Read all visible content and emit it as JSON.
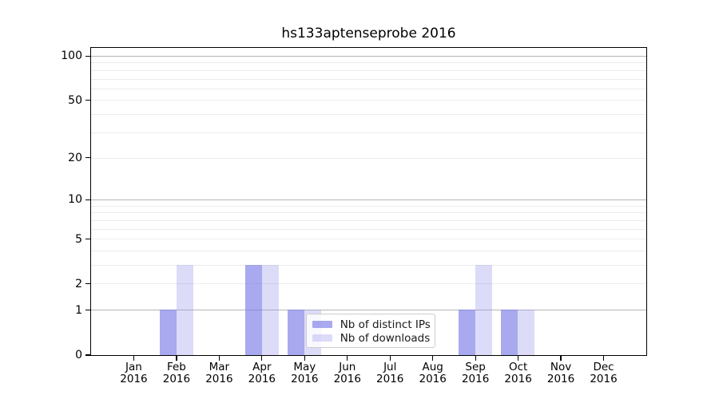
{
  "title": "hs133aptenseprobe 2016",
  "chart_data": {
    "type": "bar",
    "title": "hs133aptenseprobe 2016",
    "xlabel": "",
    "ylabel": "",
    "categories": [
      "Jan",
      "Feb",
      "Mar",
      "Apr",
      "May",
      "Jun",
      "Jul",
      "Aug",
      "Sep",
      "Oct",
      "Nov",
      "Dec"
    ],
    "xtick_year": "2016",
    "series": [
      {
        "name": "Nb of distinct IPs",
        "color": "#7878e8",
        "fill_opacity": 0.64,
        "values": [
          0,
          1,
          0,
          3,
          1,
          0,
          0,
          0,
          1,
          1,
          0,
          0
        ]
      },
      {
        "name": "Nb of downloads",
        "color": "#9696eb",
        "fill_opacity": 0.33,
        "values": [
          0,
          3,
          0,
          3,
          1,
          0,
          0,
          0,
          3,
          1,
          0,
          0
        ]
      }
    ],
    "yscale": "log(1+v)",
    "ylim": [
      0,
      113
    ],
    "yticks": [
      0,
      1,
      2,
      5,
      10,
      20,
      50,
      100
    ],
    "ytick_labels": [
      "0",
      "1",
      "2",
      "5",
      "10",
      "20",
      "50",
      "100"
    ],
    "major_gridline_values": [
      1,
      10,
      100
    ],
    "minor_gridline_values": [
      2,
      3,
      4,
      5,
      6,
      7,
      8,
      9,
      20,
      30,
      40,
      50,
      60,
      70,
      80,
      90
    ],
    "grid": true,
    "legend_location": "lower center, inside plot",
    "colors": {
      "grid_major": "#b4b4b4",
      "grid_minor": "#ececec",
      "axis": "#000000",
      "text": "#000000",
      "legend_border": "#cccccc"
    }
  }
}
